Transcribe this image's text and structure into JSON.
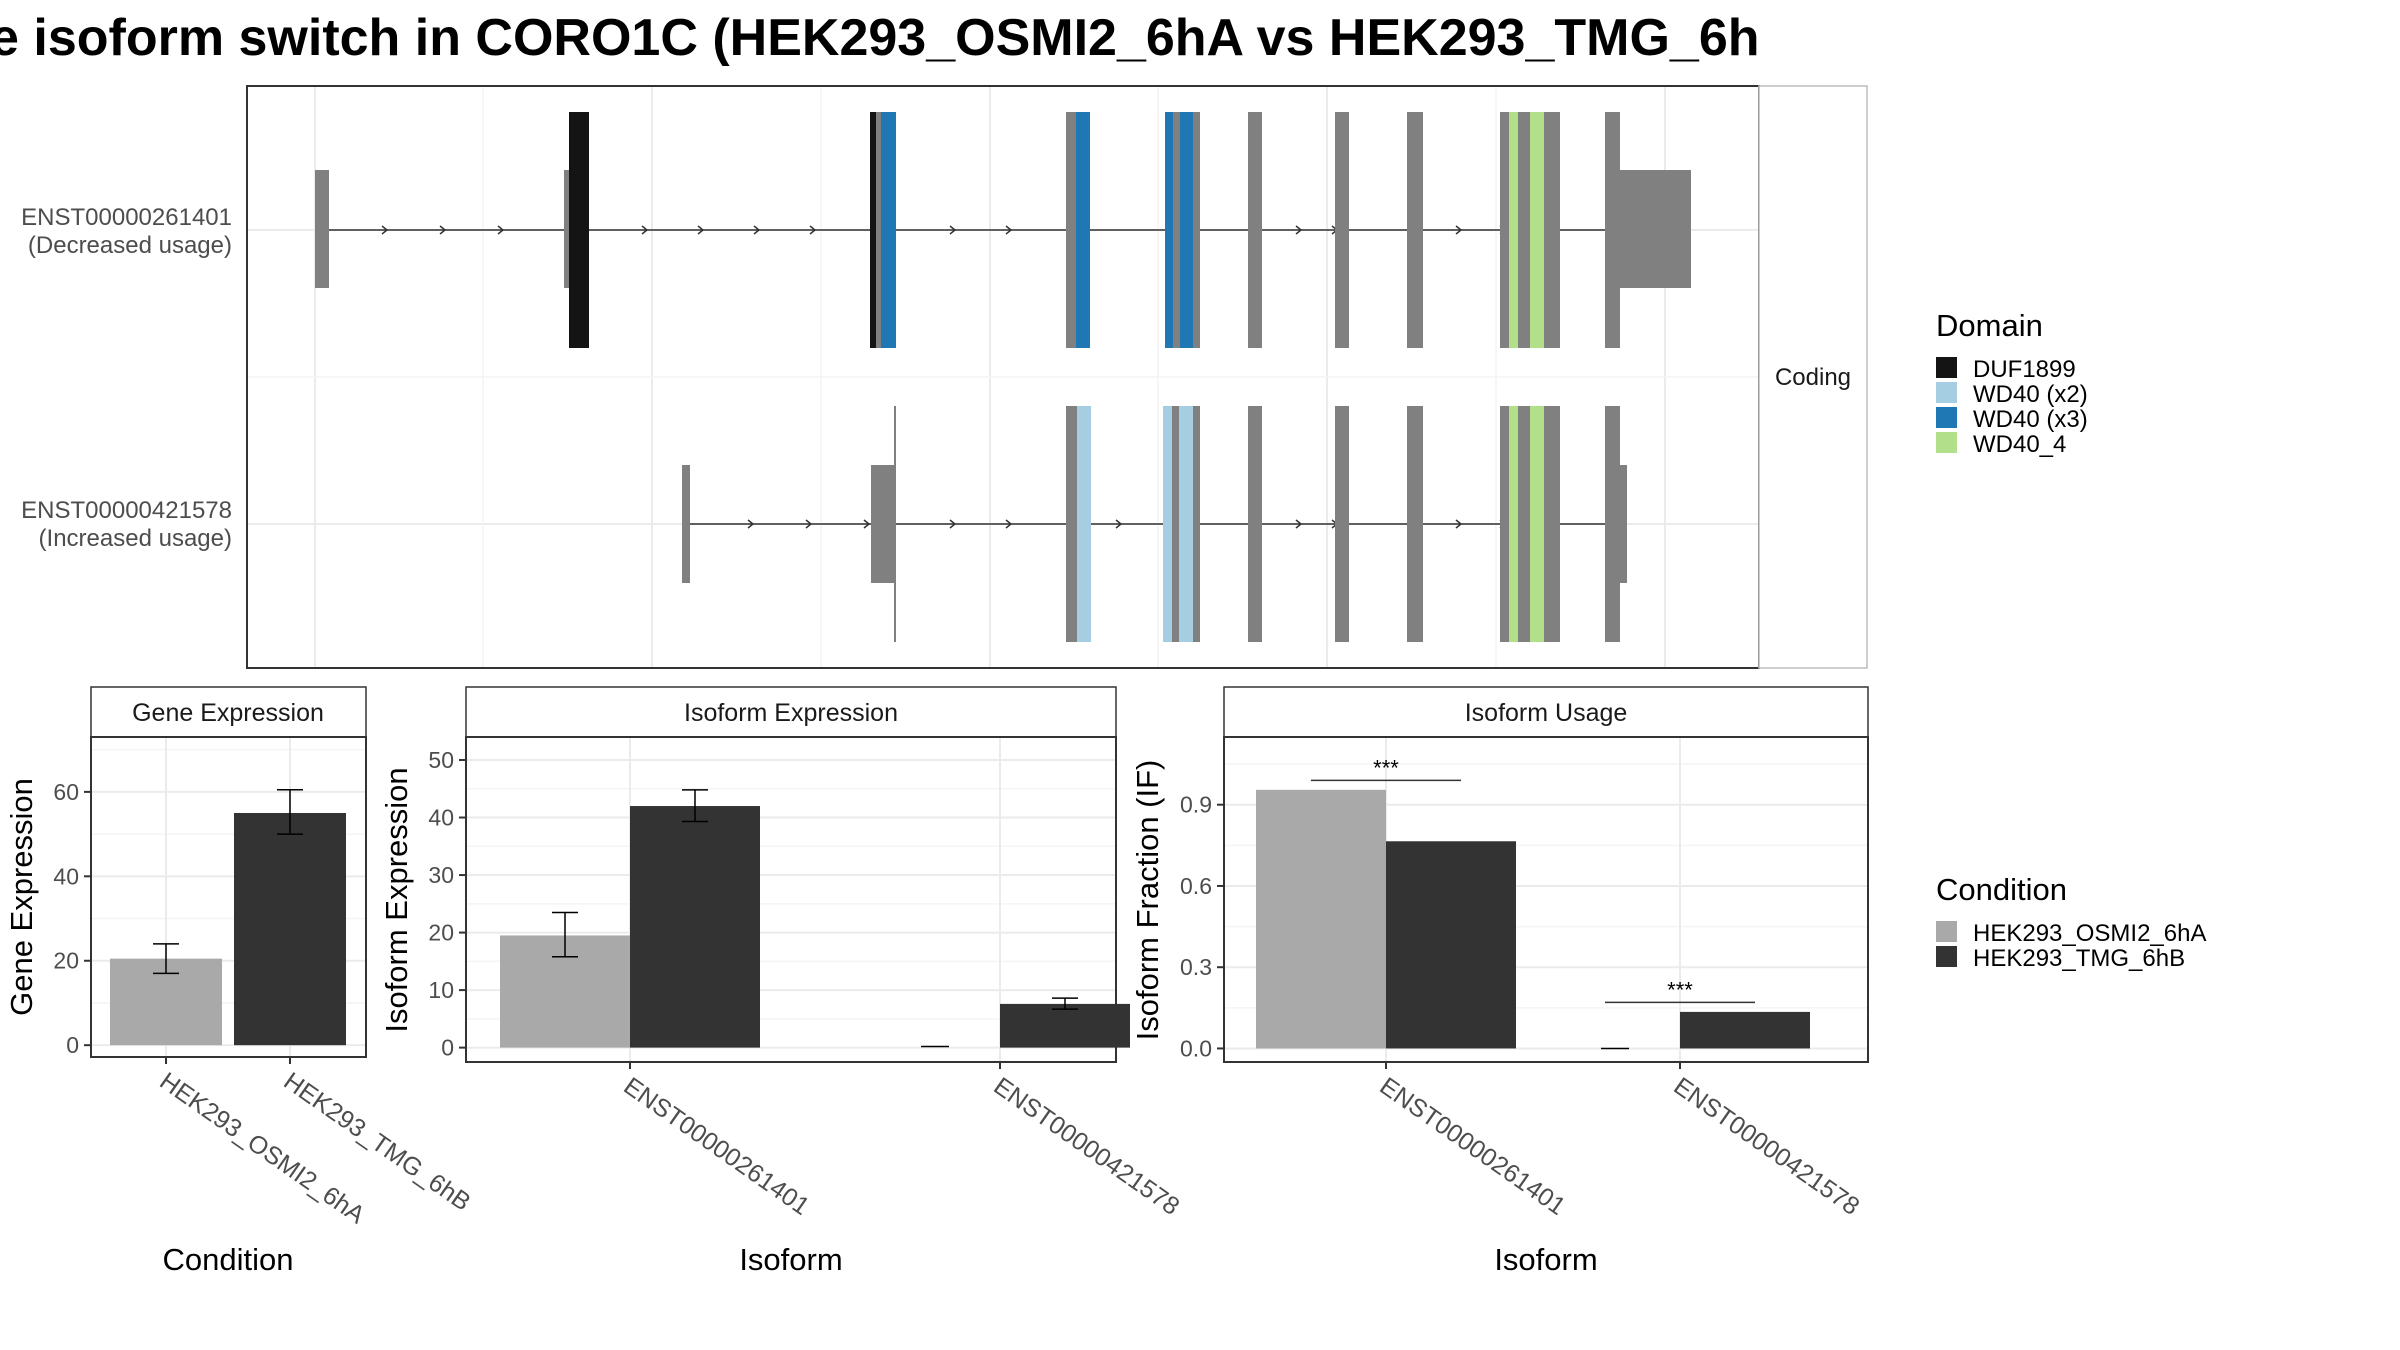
{
  "title": "e isoform switch in CORO1C (HEK293_OSMI2_6hA vs HEK293_TMG_6h",
  "colors": {
    "cond_a": "#A9A9A9",
    "cond_b": "#333333",
    "exon": "#808080",
    "panel_border": "#333333",
    "grid": "#EBEBEB",
    "strip_bg": "#FFFFFF",
    "domain_DUF1899": "#141414",
    "domain_WD40_x2": "#A6CEE3",
    "domain_WD40_x3": "#1F78B4",
    "domain_WD40_4": "#B2DF8A"
  },
  "structure": {
    "facet_label": "Coding",
    "transcripts": [
      {
        "id": "ENST00000261401",
        "usage": "(Decreased usage)"
      },
      {
        "id": "ENST00000421578",
        "usage": "(Increased usage)"
      }
    ]
  },
  "legend_domain": {
    "title": "Domain",
    "items": [
      {
        "label": "DUF1899",
        "color": "#141414"
      },
      {
        "label": "WD40 (x2)",
        "color": "#A6CEE3"
      },
      {
        "label": "WD40 (x3)",
        "color": "#1F78B4"
      },
      {
        "label": "WD40_4",
        "color": "#B2DF8A"
      }
    ]
  },
  "legend_condition": {
    "title": "Condition",
    "items": [
      {
        "label": "HEK293_OSMI2_6hA",
        "color": "#A9A9A9"
      },
      {
        "label": "HEK293_TMG_6hB",
        "color": "#333333"
      }
    ]
  },
  "chart_data": [
    {
      "type": "bar",
      "title": "Gene Expression",
      "xlabel": "Condition",
      "ylabel": "Gene Expression",
      "categories": [
        "HEK293_OSMI2_6hA",
        "HEK293_TMG_6hB"
      ],
      "values": [
        20.5,
        55.0
      ],
      "errors": [
        [
          17.0,
          24.0
        ],
        [
          50.0,
          60.5
        ]
      ],
      "ylim": [
        -2.8,
        73
      ],
      "yticks": [
        0,
        20,
        40,
        60
      ],
      "grid": true
    },
    {
      "type": "bar",
      "title": "Isoform Expression",
      "xlabel": "Isoform",
      "ylabel": "Isoform Expression",
      "categories": [
        "ENST00000261401",
        "ENST00000421578"
      ],
      "series": [
        {
          "name": "HEK293_OSMI2_6hA",
          "values": [
            19.5,
            0.2
          ],
          "errors": [
            [
              15.8,
              23.5
            ],
            null
          ]
        },
        {
          "name": "HEK293_TMG_6hB",
          "values": [
            42.0,
            7.6
          ],
          "errors": [
            [
              39.3,
              44.8
            ],
            [
              6.7,
              8.6
            ]
          ]
        }
      ],
      "ylim": [
        -2.5,
        54
      ],
      "yticks": [
        0,
        10,
        20,
        30,
        40,
        50
      ],
      "grid": true
    },
    {
      "type": "bar",
      "title": "Isoform Usage",
      "xlabel": "Isoform",
      "ylabel": "Isoform Fraction (IF)",
      "categories": [
        "ENST00000261401",
        "ENST00000421578"
      ],
      "series": [
        {
          "name": "HEK293_OSMI2_6hA",
          "values": [
            0.955,
            0.0
          ]
        },
        {
          "name": "HEK293_TMG_6hB",
          "values": [
            0.765,
            0.135
          ]
        }
      ],
      "significance": [
        "***",
        "***"
      ],
      "ylim": [
        -0.05,
        1.15
      ],
      "yticks": [
        0.0,
        0.3,
        0.6,
        0.9
      ],
      "grid": true
    }
  ]
}
